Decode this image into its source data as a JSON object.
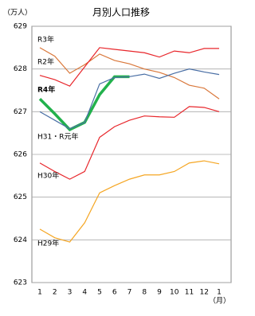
{
  "chart_data": {
    "type": "line",
    "title": "月別人口推移",
    "y_label": "（万人）",
    "x_label": "（月）",
    "categories": [
      "1",
      "2",
      "3",
      "4",
      "5",
      "6",
      "7",
      "8",
      "9",
      "10",
      "11",
      "12",
      "1"
    ],
    "ylim": [
      623,
      629
    ],
    "yticks": [
      623,
      624,
      625,
      626,
      627,
      628,
      629
    ],
    "grid": true,
    "series": [
      {
        "name": "R3年",
        "color": "#d9773a",
        "values": [
          628.5,
          628.3,
          627.9,
          628.1,
          628.35,
          628.2,
          628.12,
          628.0,
          627.92,
          627.8,
          627.62,
          627.55,
          627.3
        ]
      },
      {
        "name": "R2年",
        "color": "#e8262b",
        "values": [
          627.85,
          627.75,
          627.6,
          628.05,
          628.5,
          628.46,
          628.42,
          628.38,
          628.28,
          628.42,
          628.38,
          628.48,
          628.48
        ]
      },
      {
        "name": "R4年",
        "color": "#22b14c",
        "values": [
          627.3,
          626.95,
          626.58,
          626.75,
          627.4,
          627.82,
          627.82,
          null,
          null,
          null,
          null,
          null,
          null
        ]
      },
      {
        "name": "H31・R元年",
        "color": "#4a6fa5",
        "values": [
          627.0,
          626.8,
          626.6,
          626.75,
          627.65,
          627.8,
          627.82,
          627.88,
          627.78,
          627.9,
          628.0,
          627.93,
          627.87
        ]
      },
      {
        "name": "H30年",
        "color": "#e8262b",
        "values": [
          625.8,
          625.6,
          625.42,
          625.6,
          626.4,
          626.65,
          626.8,
          626.9,
          626.88,
          626.87,
          627.12,
          627.1,
          627.0
        ]
      },
      {
        "name": "H29年",
        "color": "#f5a623",
        "values": [
          624.25,
          624.05,
          623.95,
          624.4,
          625.1,
          625.27,
          625.42,
          625.52,
          625.52,
          625.6,
          625.8,
          625.85,
          625.78
        ]
      }
    ]
  }
}
